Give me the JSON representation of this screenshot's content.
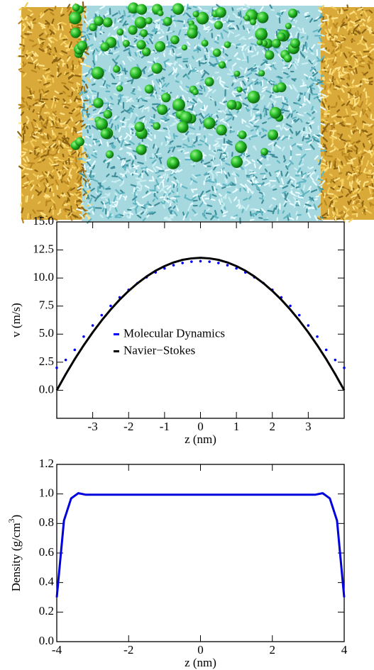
{
  "chart_data": [
    {
      "type": "line",
      "x_label": "z (nm)",
      "y_label": "v (m/s)",
      "x": [
        -4,
        -3.75,
        -3.5,
        -3.25,
        -3,
        -2.75,
        -2.5,
        -2.25,
        -2,
        -1.75,
        -1.5,
        -1.25,
        -1,
        -0.75,
        -0.5,
        -0.25,
        0,
        0.25,
        0.5,
        0.75,
        1,
        1.25,
        1.5,
        1.75,
        2,
        2.25,
        2.5,
        2.75,
        3,
        3.25,
        3.5,
        3.75,
        4
      ],
      "series": [
        {
          "name": "Molecular Dynamics",
          "color": "#0000ff",
          "marker": "dot",
          "values": [
            2.0,
            2.7,
            3.6,
            4.78,
            5.77,
            6.69,
            7.52,
            8.28,
            8.95,
            9.55,
            10.07,
            10.5,
            10.86,
            11.14,
            11.34,
            11.46,
            11.5,
            11.46,
            11.34,
            11.14,
            10.86,
            10.5,
            10.07,
            9.55,
            8.95,
            8.28,
            7.52,
            6.69,
            5.77,
            4.78,
            3.6,
            2.7,
            2.0
          ]
        },
        {
          "name": "Navier−Stokes",
          "color": "#000000",
          "marker": "line",
          "values": [
            0,
            1.43,
            2.77,
            4.01,
            5.16,
            6.22,
            7.19,
            8.07,
            8.85,
            9.54,
            10.14,
            10.65,
            11.06,
            11.39,
            11.62,
            11.75,
            11.8,
            11.75,
            11.62,
            11.39,
            11.06,
            10.65,
            10.14,
            9.54,
            8.85,
            8.07,
            7.19,
            6.22,
            5.16,
            4.01,
            2.77,
            1.43,
            0
          ]
        }
      ],
      "xlim": [
        -4,
        4
      ],
      "xticks": [
        -3,
        -2,
        -1,
        0,
        1,
        2,
        3
      ],
      "ylim": [
        -2.5,
        15
      ],
      "yticks": [
        {
          "value": 0,
          "label": "0.0"
        },
        2.5,
        {
          "value": 5,
          "label": "5.0"
        },
        7.5,
        {
          "value": 10,
          "label": "10.0"
        },
        12.5,
        {
          "value": 15,
          "label": "15.0"
        }
      ],
      "legend": "center left"
    },
    {
      "type": "line",
      "x_label": "z (nm)",
      "y_label": "Density (g/cm",
      "y_label_sup": "3",
      "y_label_end": ")",
      "x": [
        -4,
        -3.8,
        -3.6,
        -3.4,
        -3.2,
        -3,
        -2,
        -1,
        0,
        1,
        2,
        3,
        3.2,
        3.4,
        3.6,
        3.8,
        4
      ],
      "series": [
        {
          "color": "#0000dd",
          "marker": "line",
          "values": [
            0.3,
            0.82,
            0.97,
            1.005,
            0.995,
            0.995,
            0.995,
            0.995,
            0.995,
            0.995,
            0.995,
            0.995,
            0.995,
            1.005,
            0.97,
            0.82,
            0.3
          ]
        }
      ],
      "xlim": [
        -4,
        4
      ],
      "xticks": [
        -4,
        -2,
        0,
        2,
        4
      ],
      "ylim": [
        0,
        1.2
      ],
      "yticks": [
        {
          "value": 0,
          "label": "0.0"
        },
        0.2,
        0.4,
        0.6,
        0.8,
        {
          "value": 1,
          "label": "1.0"
        },
        1.2
      ]
    }
  ]
}
